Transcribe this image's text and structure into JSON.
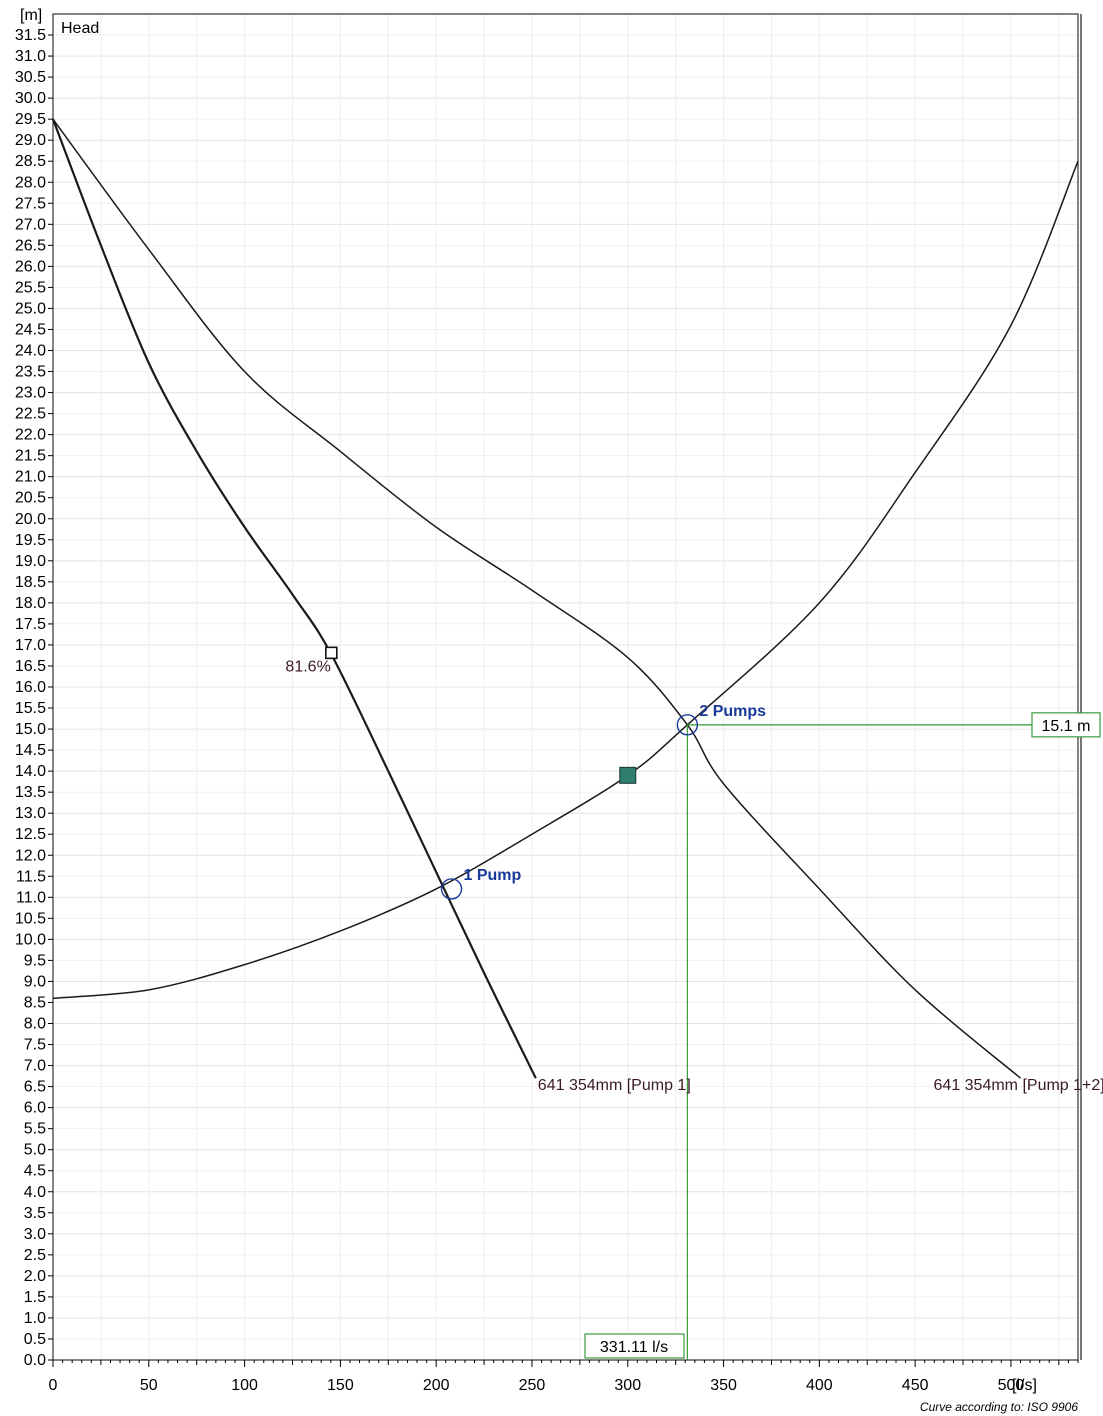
{
  "chart_data": {
    "type": "line",
    "ylabel": "Head",
    "y_unit": "[m]",
    "x_unit": "[l/s]",
    "xlim": [
      0,
      535
    ],
    "ylim": [
      0,
      32
    ],
    "x_ticks": [
      0,
      50,
      100,
      150,
      200,
      250,
      300,
      350,
      400,
      450,
      500
    ],
    "y_tick_step": 0.5,
    "y_tick_max": 31.5,
    "grid": true,
    "series": [
      {
        "name": "641 354mm [Pump 1]",
        "x": [
          0,
          25,
          50,
          75,
          100,
          125,
          145,
          175,
          200,
          225,
          252
        ],
        "y": [
          29.5,
          26.5,
          23.7,
          21.6,
          19.8,
          18.2,
          16.8,
          14.0,
          11.6,
          9.2,
          6.7
        ]
      },
      {
        "name": "641 354mm [Pump 1+2]",
        "x": [
          0,
          50,
          100,
          150,
          200,
          250,
          300,
          331.11,
          350,
          400,
          450,
          505
        ],
        "y": [
          29.5,
          26.4,
          23.5,
          21.6,
          19.8,
          18.3,
          16.7,
          15.1,
          13.7,
          11.2,
          8.8,
          6.7
        ]
      },
      {
        "name": "",
        "x": [
          0,
          50,
          100,
          150,
          200,
          250,
          300,
          331.11,
          400,
          450,
          500,
          535
        ],
        "y": [
          8.6,
          8.8,
          9.4,
          10.2,
          11.2,
          12.5,
          13.9,
          15.1,
          18.0,
          21.1,
          24.6,
          28.5
        ]
      }
    ],
    "annotations": [
      {
        "text": "81.6%",
        "x": 145,
        "y": 16.8
      },
      {
        "text": "641 354mm [Pump 1]",
        "x": 252,
        "y": 6.7
      },
      {
        "text": "641 354mm [Pump 1+2]",
        "x": 505,
        "y": 6.7
      }
    ],
    "operating_points": [
      {
        "label": "1 Pump",
        "x": 208,
        "y": 11.2
      },
      {
        "label": "2 Pumps",
        "x": 331.11,
        "y": 15.1
      }
    ],
    "duty_point": {
      "x": 300,
      "y": 13.9
    },
    "readout": {
      "flow": "331.11 l/s",
      "head": "15.1 m",
      "x": 331.11,
      "y": 15.1
    },
    "footnote": "Curve according to: ISO 9906",
    "colors": {
      "curve": "#1a1a1a",
      "op_marker": "#1a3a9a",
      "readout_line": "#3a9a3a",
      "duty_fill": "#2e7d6e",
      "label_dark": "#3a1a22"
    }
  }
}
